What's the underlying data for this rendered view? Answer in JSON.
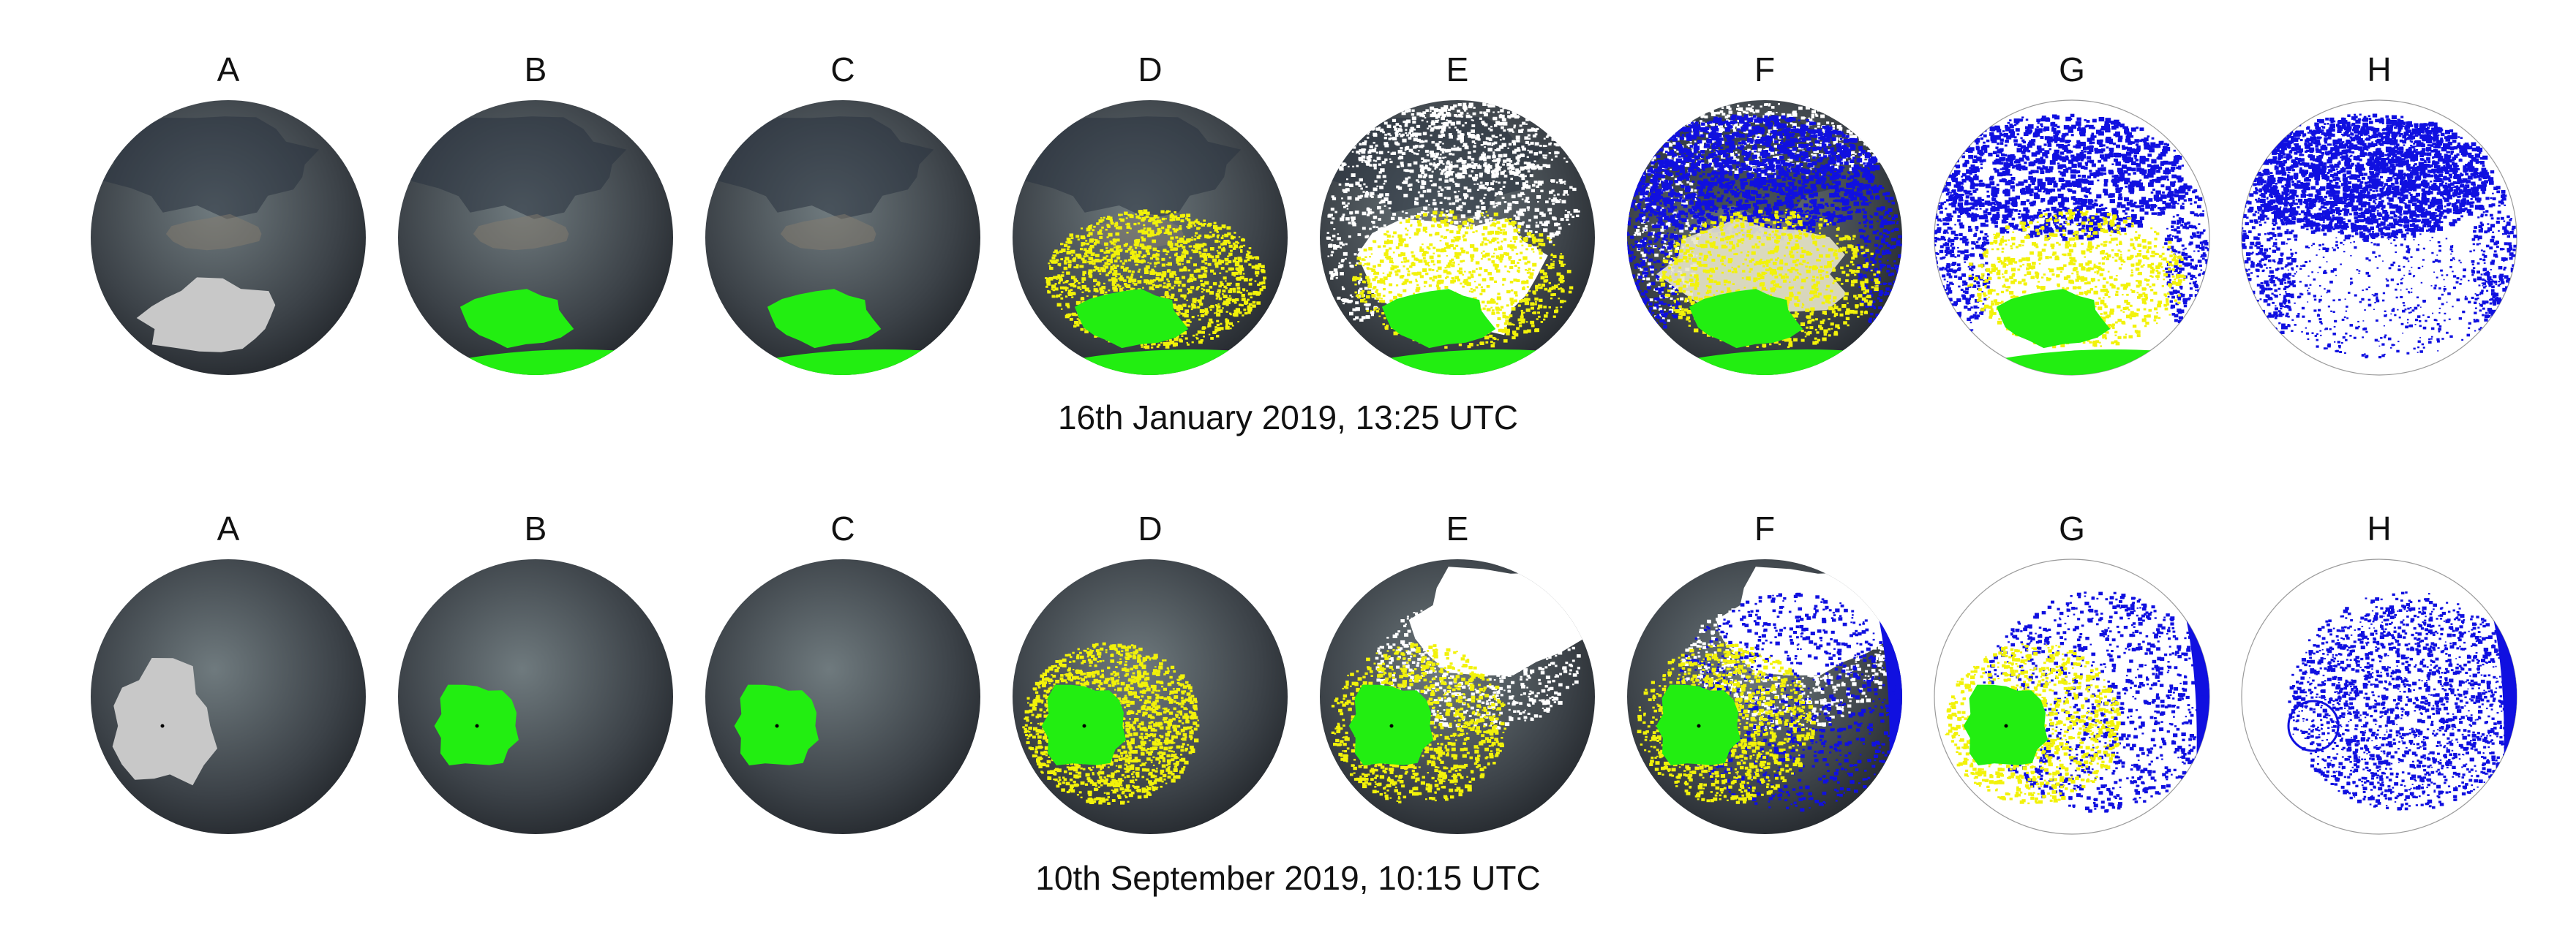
{
  "rows": [
    {
      "caption": "16th January 2019, 13:25 UTC",
      "panels": [
        {
          "label": "A",
          "kind": "raw-sky-image"
        },
        {
          "label": "B",
          "kind": "sun-mask-green"
        },
        {
          "label": "C",
          "kind": "sun-mask-green"
        },
        {
          "label": "D",
          "kind": "sun-and-circumsolar-yellow"
        },
        {
          "label": "E",
          "kind": "cloud-white-overlay"
        },
        {
          "label": "F",
          "kind": "clear-sky-blue-overlay"
        },
        {
          "label": "G",
          "kind": "classified-on-white"
        },
        {
          "label": "H",
          "kind": "clear-sky-only"
        }
      ]
    },
    {
      "caption": "10th September 2019, 10:15 UTC",
      "panels": [
        {
          "label": "A",
          "kind": "raw-sky-image"
        },
        {
          "label": "B",
          "kind": "sun-mask-green"
        },
        {
          "label": "C",
          "kind": "sun-mask-green"
        },
        {
          "label": "D",
          "kind": "sun-and-circumsolar-yellow"
        },
        {
          "label": "E",
          "kind": "cloud-white-overlay"
        },
        {
          "label": "F",
          "kind": "clear-sky-blue-overlay"
        },
        {
          "label": "G",
          "kind": "classified-on-white"
        },
        {
          "label": "H",
          "kind": "clear-sky-only"
        }
      ]
    }
  ],
  "colors": {
    "sky_dark": "#3c4248",
    "sky_light": "#6f7a7e",
    "cloud_dark": "#2a3340",
    "sun_glare": "#c8c8c8",
    "sun_mask": "#22ee11",
    "circumsolar": "#f2f20a",
    "cloud": "#ffffff",
    "clear_sky": "#1010e0",
    "background": "#ffffff"
  }
}
